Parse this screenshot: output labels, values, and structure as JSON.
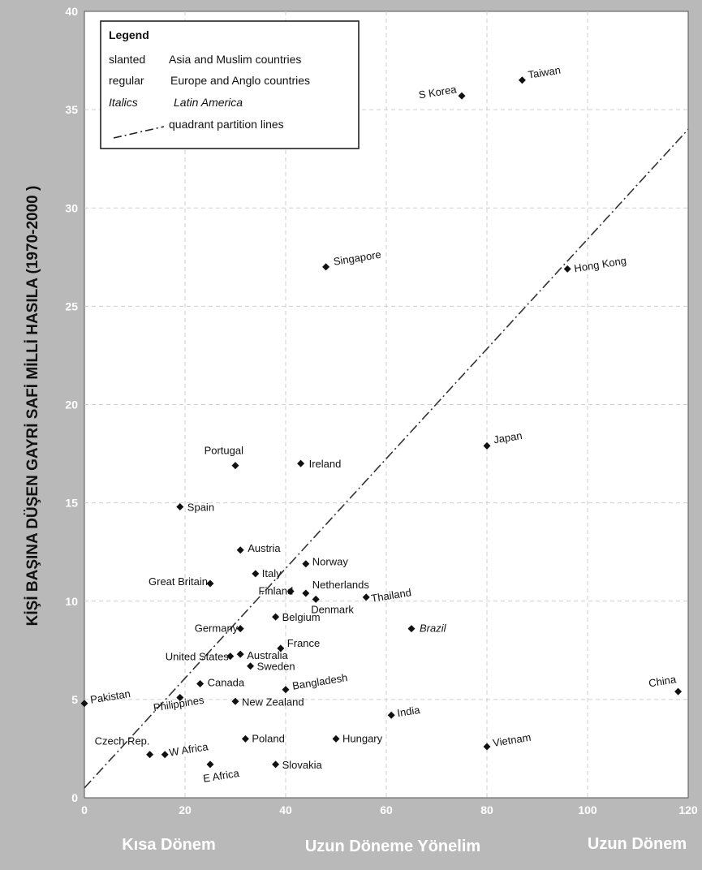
{
  "chart_data": {
    "type": "scatter",
    "title": "",
    "xlabel": "",
    "ylabel": "KİŞİ BAŞINA DÜŞEN GAYRİ SAFİ MİLLİ HASILA (1970-2000 )",
    "xlim": [
      0,
      120
    ],
    "ylim": [
      0,
      40
    ],
    "x_ticks": [
      "0",
      "20",
      "40",
      "60",
      "80",
      "100",
      "120"
    ],
    "y_ticks": [
      "0",
      "5",
      "10",
      "15",
      "20",
      "25",
      "30",
      "35",
      "40"
    ],
    "x_group_labels": [
      "Kısa Dönem",
      "Uzun Döneme Yönelim",
      "Uzun Dönem"
    ],
    "grid": true,
    "partition_line": {
      "x": [
        0,
        120
      ],
      "y": [
        0.5,
        34
      ]
    },
    "legend": {
      "title": "Legend",
      "placement": "top-left",
      "entries": [
        {
          "key": "slanted",
          "text": "Asia and Muslim countries"
        },
        {
          "key": "regular",
          "text": "Europe and Anglo countries"
        },
        {
          "key": "Italics",
          "text": "Latin America"
        },
        {
          "key": "",
          "text": "quadrant partition lines"
        }
      ]
    },
    "points": [
      {
        "label": "Taiwan",
        "x": 87,
        "y": 36.5,
        "style": "slanted"
      },
      {
        "label": "S Korea",
        "x": 75,
        "y": 35.7,
        "style": "slanted"
      },
      {
        "label": "Singapore",
        "x": 48,
        "y": 27,
        "style": "slanted"
      },
      {
        "label": "Hong Kong",
        "x": 96,
        "y": 26.9,
        "style": "slanted"
      },
      {
        "label": "Japan",
        "x": 80,
        "y": 17.9,
        "style": "slanted"
      },
      {
        "label": "Portugal",
        "x": 30,
        "y": 16.9,
        "style": "regular"
      },
      {
        "label": "Ireland",
        "x": 43,
        "y": 17,
        "style": "regular"
      },
      {
        "label": "Spain",
        "x": 19,
        "y": 14.8,
        "style": "regular"
      },
      {
        "label": "Austria",
        "x": 31,
        "y": 12.6,
        "style": "regular"
      },
      {
        "label": "Italy",
        "x": 34,
        "y": 11.4,
        "style": "regular"
      },
      {
        "label": "Norway",
        "x": 44,
        "y": 11.9,
        "style": "regular"
      },
      {
        "label": "Great Britain",
        "x": 25,
        "y": 10.9,
        "style": "regular"
      },
      {
        "label": "Finland",
        "x": 41,
        "y": 10.5,
        "style": "regular"
      },
      {
        "label": "Netherlands",
        "x": 44,
        "y": 10.4,
        "style": "regular"
      },
      {
        "label": "Denmark",
        "x": 46,
        "y": 10.1,
        "style": "regular"
      },
      {
        "label": "Thailand",
        "x": 56,
        "y": 10.2,
        "style": "slanted"
      },
      {
        "label": "Germany",
        "x": 31,
        "y": 8.6,
        "style": "regular"
      },
      {
        "label": "Belgium",
        "x": 38,
        "y": 9.2,
        "style": "regular"
      },
      {
        "label": "Brazil",
        "x": 65,
        "y": 8.6,
        "style": "italic"
      },
      {
        "label": "France",
        "x": 39,
        "y": 7.6,
        "style": "regular"
      },
      {
        "label": "United States",
        "x": 29,
        "y": 7.2,
        "style": "regular"
      },
      {
        "label": "Australia",
        "x": 31,
        "y": 7.3,
        "style": "regular"
      },
      {
        "label": "Sweden",
        "x": 33,
        "y": 6.7,
        "style": "regular"
      },
      {
        "label": "Canada",
        "x": 23,
        "y": 5.8,
        "style": "regular"
      },
      {
        "label": "Bangladesh",
        "x": 40,
        "y": 5.5,
        "style": "slanted"
      },
      {
        "label": "China",
        "x": 118,
        "y": 5.4,
        "style": "slanted"
      },
      {
        "label": "Pakistan",
        "x": 0,
        "y": 4.8,
        "style": "slanted"
      },
      {
        "label": "Philippines",
        "x": 19,
        "y": 5.1,
        "style": "slanted"
      },
      {
        "label": "New Zealand",
        "x": 30,
        "y": 4.9,
        "style": "regular"
      },
      {
        "label": "India",
        "x": 61,
        "y": 4.2,
        "style": "slanted"
      },
      {
        "label": "Czech Rep.",
        "x": 13,
        "y": 2.2,
        "style": "regular"
      },
      {
        "label": "W Africa",
        "x": 16,
        "y": 2.2,
        "style": "slanted"
      },
      {
        "label": "Poland",
        "x": 32,
        "y": 3,
        "style": "regular"
      },
      {
        "label": "Hungary",
        "x": 50,
        "y": 3,
        "style": "regular"
      },
      {
        "label": "Vietnam",
        "x": 80,
        "y": 2.6,
        "style": "slanted"
      },
      {
        "label": "E Africa",
        "x": 25,
        "y": 1.7,
        "style": "slanted"
      },
      {
        "label": "Slovakia",
        "x": 38,
        "y": 1.7,
        "style": "regular"
      }
    ]
  }
}
